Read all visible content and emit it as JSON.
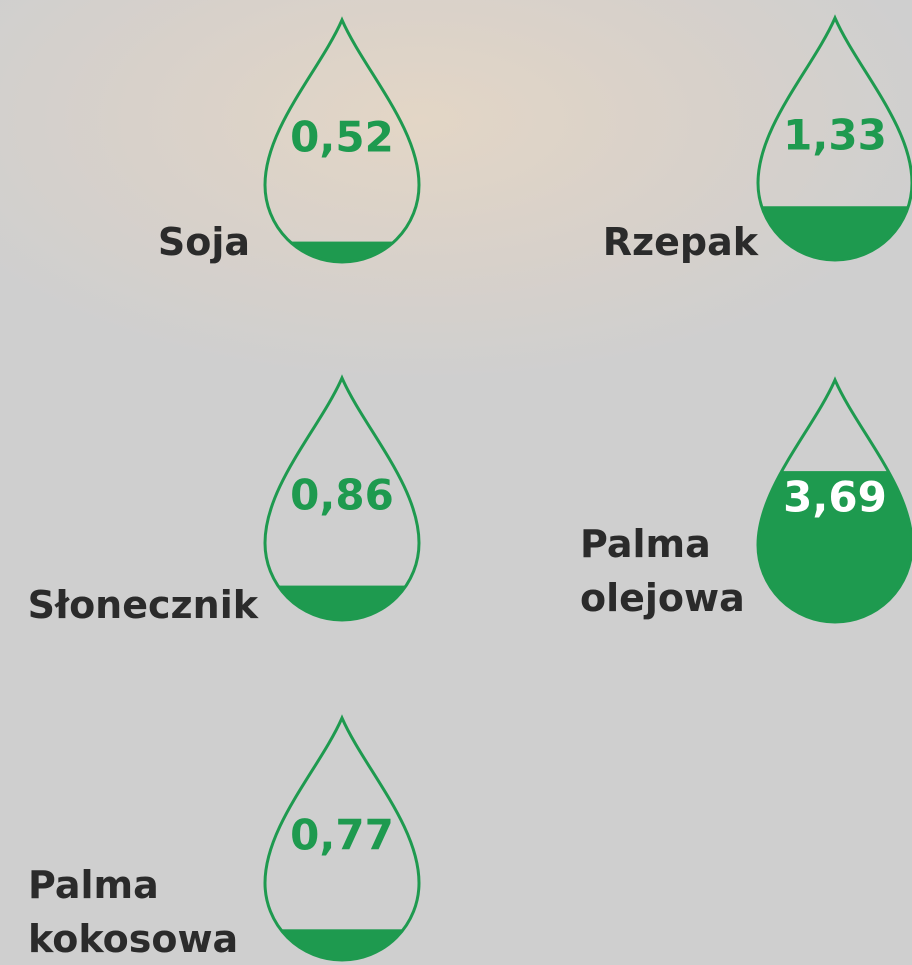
{
  "chart_data": {
    "type": "drop",
    "categories": [
      "Soja",
      "Rzepak",
      "Słonecznik",
      "Palma olejowa",
      "Palma kokosowa"
    ],
    "values": [
      0.52,
      1.33,
      0.86,
      3.69,
      0.77
    ],
    "value_labels": [
      "0,52",
      "1,33",
      "0,86",
      "3,69",
      "0,77"
    ],
    "color": "#1e9a4f"
  }
}
